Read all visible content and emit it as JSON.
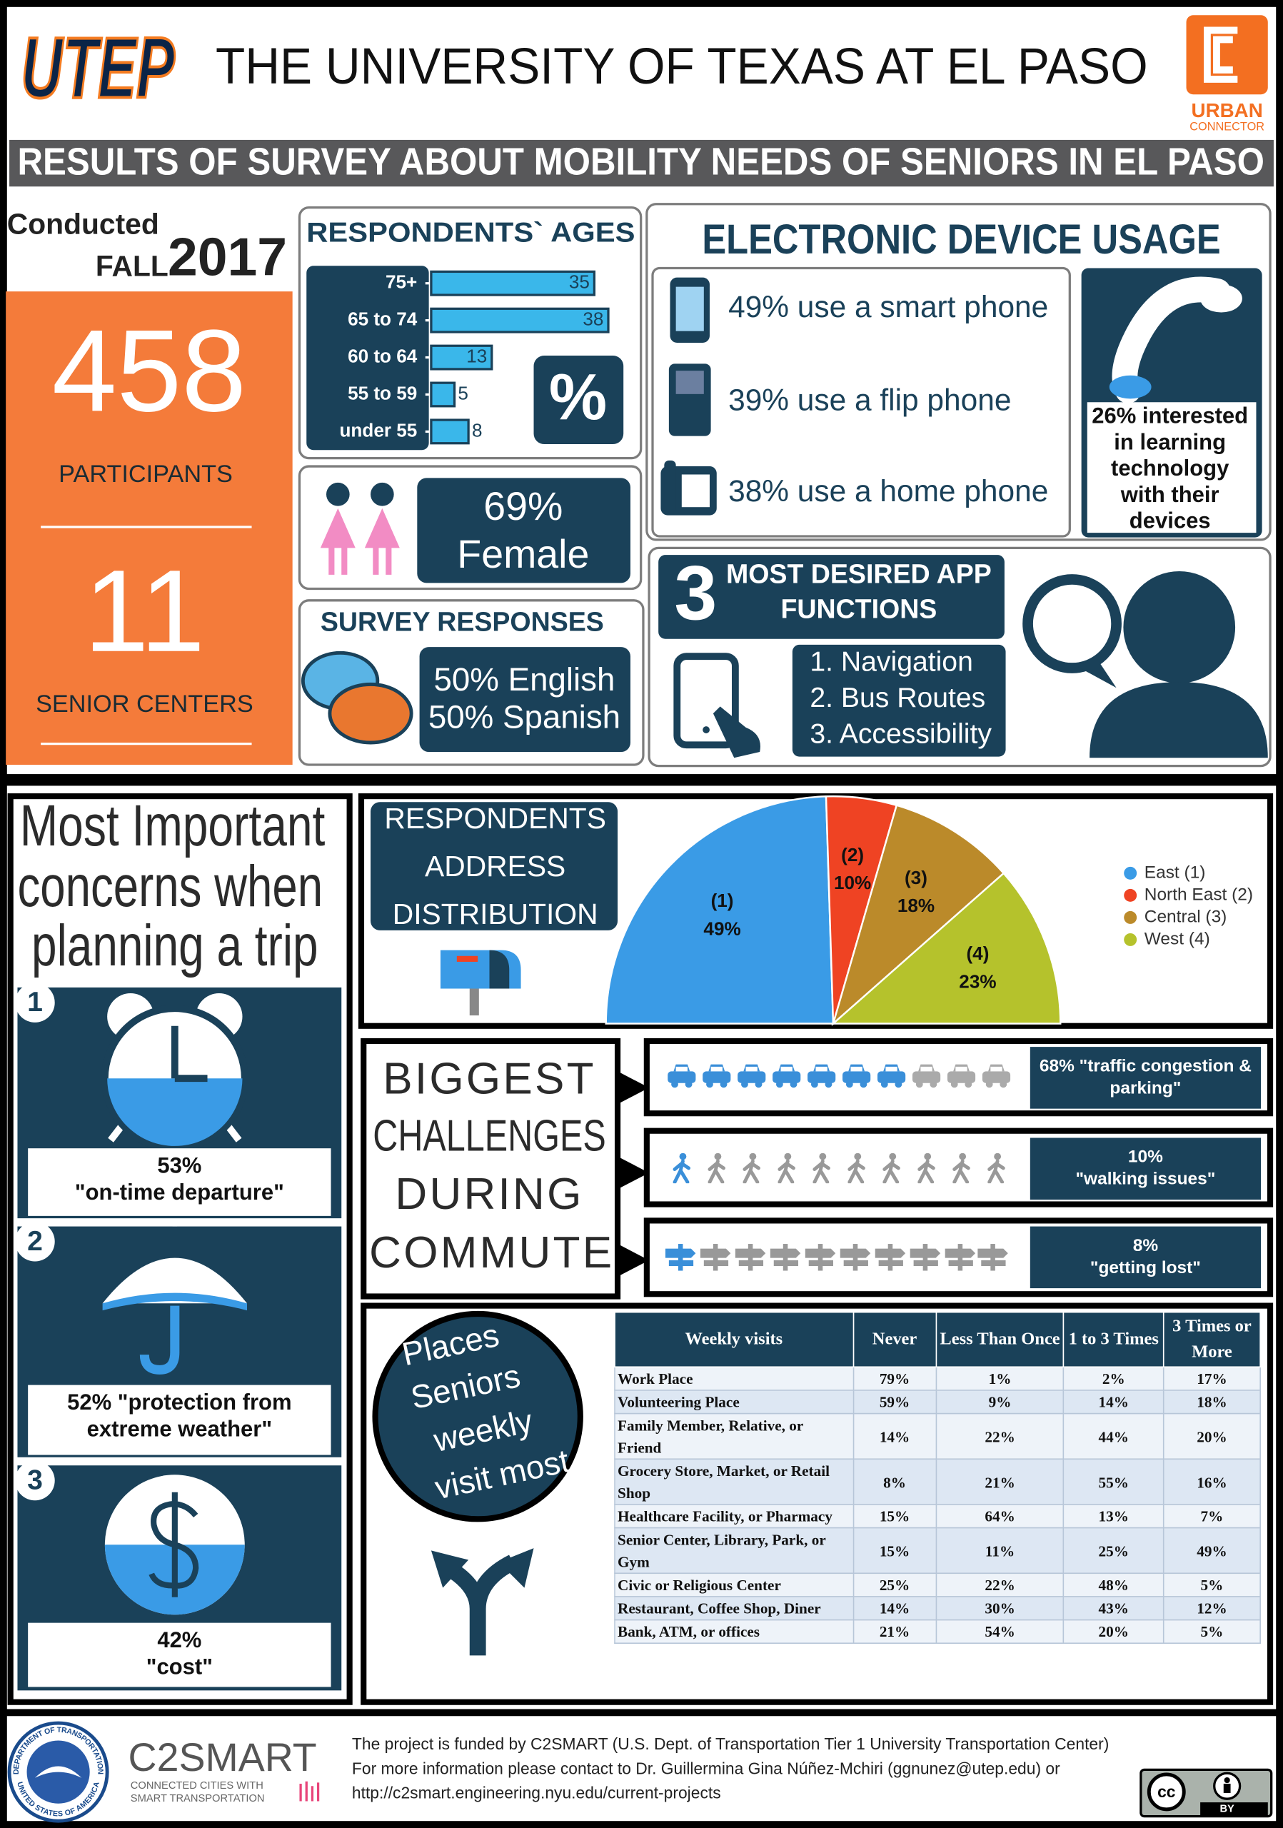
{
  "header": {
    "logo": "UTEP",
    "title": "THE UNIVERSITY OF TEXAS AT EL PASO",
    "partner": [
      "URBAN",
      "CONNECTOR"
    ],
    "banner": "RESULTS OF SURVEY ABOUT MOBILITY NEEDS OF SENIORS IN EL PASO"
  },
  "summary": {
    "conducted": "Conducted",
    "season": "FALL",
    "year": "2017",
    "participants": "458",
    "participants_label": "PARTICIPANTS",
    "centers": "11",
    "centers_label": "SENIOR CENTERS"
  },
  "chart_data": [
    {
      "type": "bar",
      "orientation": "horizontal",
      "title": "RESPONDENTS` AGES",
      "categories": [
        "75+",
        "65 to 74",
        "60 to 64",
        "55 to 59",
        "under 55"
      ],
      "values": [
        35,
        38,
        13,
        5,
        8
      ],
      "color": "#3ab7ea",
      "xlim": [
        0,
        40
      ],
      "badge": "%"
    },
    {
      "type": "pie",
      "half": true,
      "title": [
        "RESPONDENTS",
        "ADDRESS",
        "DISTRIBUTION"
      ],
      "categories": [
        "East (1)",
        "North East (2)",
        "Central (3)",
        "West (4)"
      ],
      "slice_labels": [
        "(1)",
        "(2)",
        "(3)",
        "(4)"
      ],
      "values": [
        49,
        10,
        18,
        23
      ],
      "value_labels": [
        "49%",
        "10%",
        "18%",
        "23%"
      ],
      "colors": [
        "#3a9be6",
        "#ef4323",
        "#bb8a2a",
        "#b5c22c"
      ],
      "legend": "right"
    }
  ],
  "gender": {
    "percent": "69%",
    "label": "Female"
  },
  "languages": {
    "title": "SURVEY RESPONSES",
    "lines": [
      "50% English",
      "50% Spanish"
    ]
  },
  "devices": {
    "title": "ELECTRONIC DEVICE USAGE",
    "items": [
      "49% use a smart phone",
      "39% use a flip phone",
      "38% use a home phone"
    ],
    "interest": [
      "26% interested",
      "in learning",
      "technology",
      "with their",
      "devices"
    ]
  },
  "app_functions": {
    "number": "3",
    "title": [
      "MOST DESIRED APP",
      "FUNCTIONS"
    ],
    "items": [
      "1. Navigation",
      "2. Bus Routes",
      "3. Accessibility"
    ]
  },
  "concerns": {
    "title": [
      "Most Important",
      "concerns when",
      "planning a trip"
    ],
    "items": [
      {
        "rank": "1",
        "lines": [
          "53%",
          "\"on-time departure\""
        ]
      },
      {
        "rank": "2",
        "lines": [
          "52% \"protection from",
          "extreme weather\""
        ]
      },
      {
        "rank": "3",
        "lines": [
          "42%",
          "\"cost\""
        ]
      }
    ]
  },
  "challenges": {
    "title": [
      "BIGGEST",
      "CHALLENGES",
      "DURING",
      "COMMUTE"
    ],
    "items": [
      [
        "68% \"traffic congestion &",
        "parking\""
      ],
      [
        "10%",
        "\"walking issues\""
      ],
      [
        "8%",
        "\"getting lost\""
      ]
    ]
  },
  "places": {
    "title": [
      "Places",
      "Seniors",
      "weekly",
      "visit most"
    ],
    "table": {
      "header": [
        "Weekly visits",
        "Never",
        "Less Than Once",
        "1 to 3 Times",
        "3 Times or More"
      ],
      "rows": [
        [
          "Work Place",
          "79%",
          "1%",
          "2%",
          "17%"
        ],
        [
          "Volunteering Place",
          "59%",
          "9%",
          "14%",
          "18%"
        ],
        [
          "Family Member, Relative, or Friend",
          "14%",
          "22%",
          "44%",
          "20%"
        ],
        [
          "Grocery Store, Market, or Retail Shop",
          "8%",
          "21%",
          "55%",
          "16%"
        ],
        [
          "Healthcare Facility, or Pharmacy",
          "15%",
          "64%",
          "13%",
          "7%"
        ],
        [
          "Senior Center, Library, Park, or Gym",
          "15%",
          "11%",
          "25%",
          "49%"
        ],
        [
          "Civic or Religious Center",
          "25%",
          "22%",
          "48%",
          "5%"
        ],
        [
          "Restaurant, Coffee Shop, Diner",
          "14%",
          "30%",
          "43%",
          "12%"
        ],
        [
          "Bank, ATM, or offices",
          "21%",
          "54%",
          "20%",
          "5%"
        ]
      ]
    }
  },
  "footer": {
    "seal": [
      "DEPARTMENT OF TRANSPORTATION",
      "UNITED STATES OF AMERICA"
    ],
    "c2smart": [
      "C2SMART",
      "CONNECTED CITIES WITH",
      "SMART TRANSPORTATION"
    ],
    "lines": [
      "The project is funded by C2SMART (U.S. Dept. of Transportation Tier 1 University Transportation Center)",
      "For more information please contact to Dr. Guillermina Gina Núñez-Mchiri (ggnunez@utep.edu) or",
      "http://c2smart.engineering.nyu.edu/current-projects"
    ],
    "license": [
      "cc",
      "BY"
    ]
  }
}
